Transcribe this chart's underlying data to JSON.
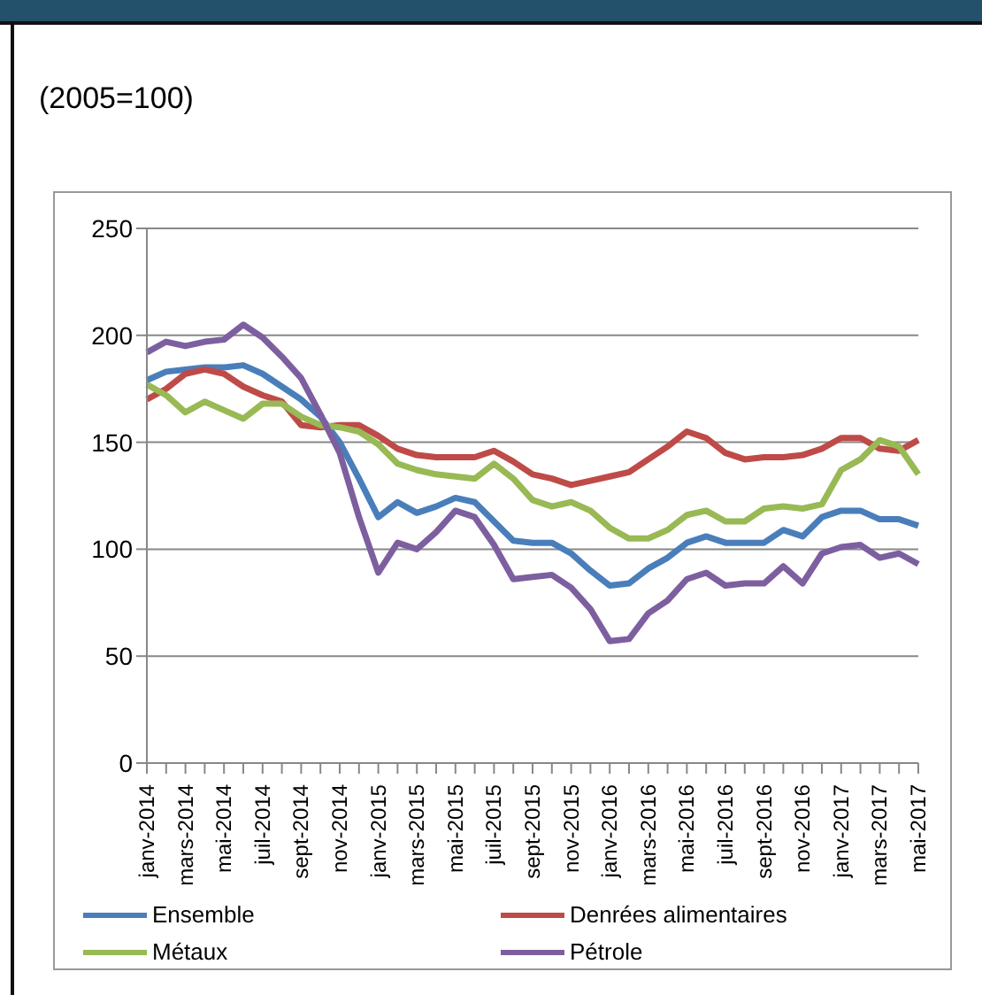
{
  "chart_data": {
    "type": "line",
    "subtitle": "(2005=100)",
    "categories": [
      "janv-2014",
      null,
      "mars-2014",
      null,
      "mai-2014",
      null,
      "juil-2014",
      null,
      "sept-2014",
      null,
      "nov-2014",
      null,
      "janv-2015",
      null,
      "mars-2015",
      null,
      "mai-2015",
      null,
      "juil-2015",
      null,
      "sept-2015",
      null,
      "nov-2015",
      null,
      "janv-2016",
      null,
      "mars-2016",
      null,
      "mai-2016",
      null,
      "juil-2016",
      null,
      "sept-2016",
      null,
      "nov-2016",
      null,
      "janv-2017",
      null,
      "mars-2017",
      null,
      "mai-2017"
    ],
    "series": [
      {
        "name": "Ensemble",
        "color": "#4a7ebb",
        "values": [
          179,
          183,
          184,
          185,
          185,
          186,
          182,
          176,
          170,
          162,
          150,
          133,
          115,
          122,
          117,
          120,
          124,
          122,
          113,
          104,
          103,
          103,
          98,
          90,
          83,
          84,
          91,
          96,
          103,
          106,
          103,
          103,
          103,
          109,
          106,
          115,
          118,
          118,
          114,
          114,
          111
        ]
      },
      {
        "name": "Denrées alimentaires",
        "color": "#be4b48",
        "values": [
          170,
          175,
          182,
          184,
          182,
          176,
          172,
          169,
          158,
          157,
          158,
          158,
          153,
          147,
          144,
          143,
          143,
          143,
          146,
          141,
          135,
          133,
          130,
          132,
          134,
          136,
          142,
          148,
          155,
          152,
          145,
          142,
          143,
          143,
          144,
          147,
          152,
          152,
          147,
          146,
          151
        ]
      },
      {
        "name": "Métaux",
        "color": "#98b954",
        "values": [
          177,
          172,
          164,
          169,
          165,
          161,
          168,
          168,
          162,
          158,
          157,
          155,
          149,
          140,
          137,
          135,
          134,
          133,
          140,
          133,
          123,
          120,
          122,
          118,
          110,
          105,
          105,
          109,
          116,
          118,
          113,
          113,
          119,
          120,
          119,
          121,
          137,
          142,
          151,
          148,
          135
        ]
      },
      {
        "name": "Pétrole",
        "color": "#7d5fa0",
        "values": [
          192,
          197,
          195,
          197,
          198,
          205,
          199,
          190,
          180,
          163,
          145,
          115,
          89,
          103,
          100,
          108,
          118,
          115,
          102,
          86,
          87,
          88,
          82,
          72,
          57,
          58,
          70,
          76,
          86,
          89,
          83,
          84,
          84,
          92,
          84,
          98,
          101,
          102,
          96,
          98,
          93
        ]
      }
    ],
    "ylim": [
      0,
      250
    ],
    "yticks": [
      0,
      50,
      100,
      150,
      200,
      250
    ],
    "grid": "y",
    "legend": "bottom",
    "marker": "none",
    "line_style": "solid"
  }
}
